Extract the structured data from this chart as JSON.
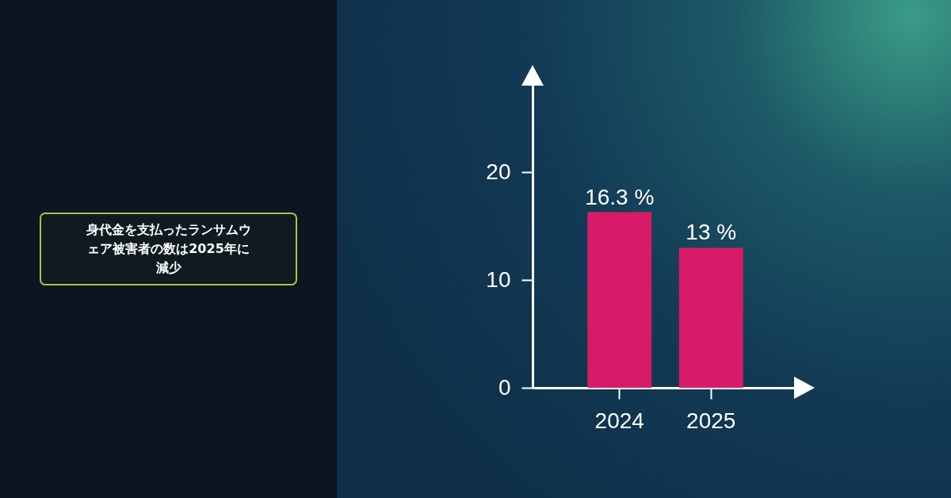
{
  "chart_data": {
    "type": "bar",
    "title": "身代金を支払ったランサムウェア被害者の数は2025年に減少",
    "categories": [
      "2024",
      "2025"
    ],
    "values": [
      16.3,
      13
    ],
    "value_labels": [
      "16.3 %",
      "13 %"
    ],
    "color": "#d81b68",
    "ylim": [
      0,
      29
    ],
    "yticks": [
      0,
      10,
      20
    ],
    "grid": false
  }
}
